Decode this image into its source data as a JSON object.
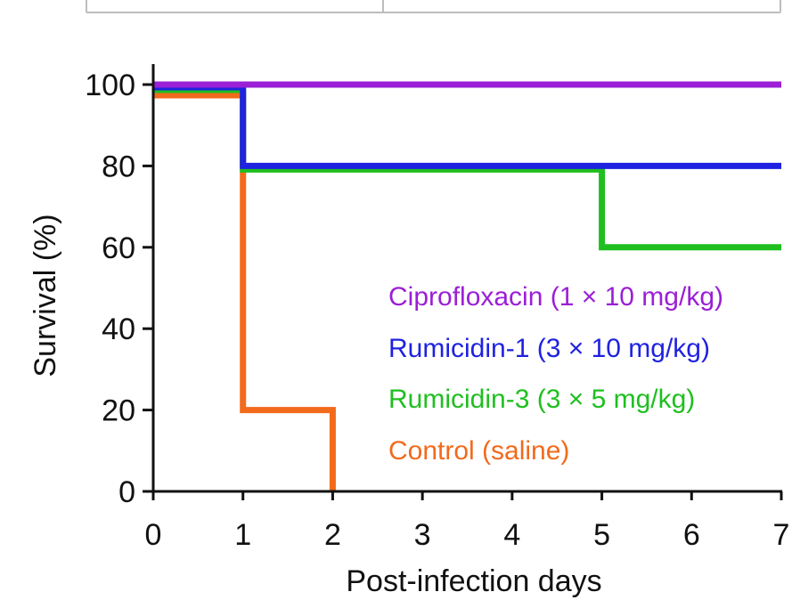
{
  "chart_data": {
    "type": "line",
    "step": true,
    "xlabel": "Post-infection days",
    "ylabel": "Survival (%)",
    "xlim": [
      0,
      7
    ],
    "ylim": [
      0,
      100
    ],
    "xticks": [
      "0",
      "1",
      "2",
      "3",
      "4",
      "5",
      "6",
      "7"
    ],
    "yticks": [
      "0",
      "20",
      "40",
      "60",
      "80",
      "100"
    ],
    "grid": false,
    "legend_placement": "center-right",
    "series": [
      {
        "name": "Ciprofloxacin (1 × 10 mg/kg)",
        "color": "#9b1fd6",
        "x": [
          0,
          7
        ],
        "y": [
          100,
          100
        ]
      },
      {
        "name": "Rumicidin-1 (3 × 10 mg/kg)",
        "color": "#1f22e0",
        "x": [
          0,
          1,
          1,
          7
        ],
        "y": [
          100,
          100,
          80,
          80
        ]
      },
      {
        "name": "Rumicidin-3 (3 × 5 mg/kg)",
        "color": "#1fbf1f",
        "x": [
          0,
          1,
          1,
          5,
          5,
          7
        ],
        "y": [
          100,
          100,
          80,
          80,
          60,
          60
        ]
      },
      {
        "name": "Control (saline)",
        "color": "#f26a1b",
        "x": [
          0,
          1,
          1,
          2,
          2
        ],
        "y": [
          100,
          100,
          20,
          20,
          0
        ]
      }
    ]
  }
}
